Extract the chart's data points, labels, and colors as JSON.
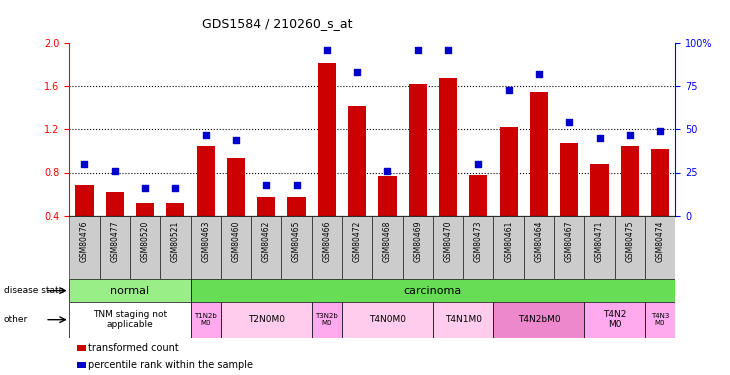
{
  "title": "GDS1584 / 210260_s_at",
  "samples": [
    "GSM80476",
    "GSM80477",
    "GSM80520",
    "GSM80521",
    "GSM80463",
    "GSM80460",
    "GSM80462",
    "GSM80465",
    "GSM80466",
    "GSM80472",
    "GSM80468",
    "GSM80469",
    "GSM80470",
    "GSM80473",
    "GSM80461",
    "GSM80464",
    "GSM80467",
    "GSM80471",
    "GSM80475",
    "GSM80474"
  ],
  "transformed_count": [
    0.68,
    0.62,
    0.52,
    0.52,
    1.05,
    0.93,
    0.57,
    0.57,
    1.82,
    1.42,
    0.77,
    1.62,
    1.68,
    0.78,
    1.22,
    1.55,
    1.07,
    0.88,
    1.05,
    1.02
  ],
  "percentile_rank": [
    30,
    26,
    16,
    16,
    47,
    44,
    18,
    18,
    96,
    83,
    26,
    96,
    96,
    30,
    73,
    82,
    54,
    45,
    47,
    49
  ],
  "bar_color": "#cc0000",
  "dot_color": "#0000cc",
  "ylim_left": [
    0.4,
    2.0
  ],
  "ylim_right": [
    0,
    100
  ],
  "yticks_left": [
    0.4,
    0.8,
    1.2,
    1.6,
    2.0
  ],
  "yticks_right": [
    0,
    25,
    50,
    75,
    100
  ],
  "ytick_labels_right": [
    "0",
    "25",
    "50",
    "75",
    "100%"
  ],
  "dotted_lines": [
    0.8,
    1.2,
    1.6
  ],
  "disease_state_groups": [
    {
      "label": "normal",
      "start": 0,
      "end": 4,
      "color": "#99ee88"
    },
    {
      "label": "carcinoma",
      "start": 4,
      "end": 20,
      "color": "#66dd55"
    }
  ],
  "other_groups": [
    {
      "label": "TNM staging not\napplicable",
      "start": 0,
      "end": 4,
      "color": "#ffffff"
    },
    {
      "label": "T1N2b\nM0",
      "start": 4,
      "end": 5,
      "color": "#ffaaee"
    },
    {
      "label": "T2N0M0",
      "start": 5,
      "end": 8,
      "color": "#ffccee"
    },
    {
      "label": "T3N2b\nM0",
      "start": 8,
      "end": 9,
      "color": "#ffaaee"
    },
    {
      "label": "T4N0M0",
      "start": 9,
      "end": 12,
      "color": "#ffccee"
    },
    {
      "label": "T4N1M0",
      "start": 12,
      "end": 14,
      "color": "#ffccee"
    },
    {
      "label": "T4N2bM0",
      "start": 14,
      "end": 17,
      "color": "#ee88cc"
    },
    {
      "label": "T4N2\nM0",
      "start": 17,
      "end": 19,
      "color": "#ffaaee"
    },
    {
      "label": "T4N3\nM0",
      "start": 19,
      "end": 20,
      "color": "#ffaaee"
    }
  ],
  "xtick_bg_color": "#cccccc",
  "label_arrow_color": "#555555",
  "fig_width": 7.3,
  "fig_height": 3.75,
  "dpi": 100
}
